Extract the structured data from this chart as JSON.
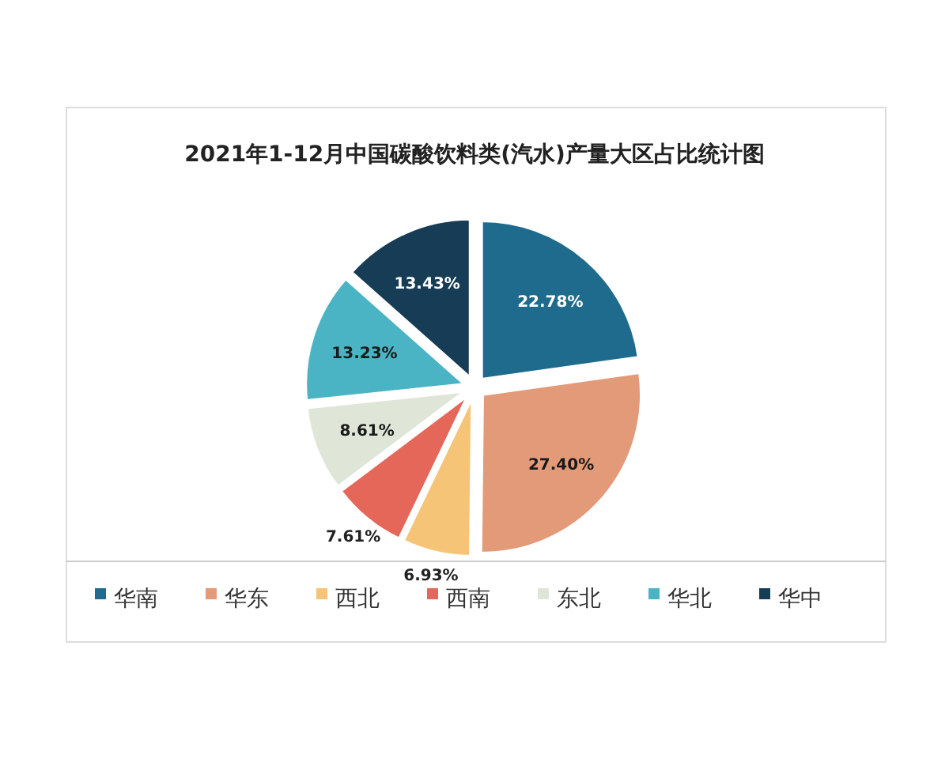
{
  "chart_data": {
    "type": "pie",
    "title": "2021年1-12月中国碳酸饮料类(汽水)产量大区占比统计图",
    "categories": [
      "华南",
      "华东",
      "西北",
      "西南",
      "东北",
      "华北",
      "华中"
    ],
    "values": [
      22.78,
      27.4,
      6.93,
      7.61,
      8.61,
      13.23,
      13.43
    ],
    "value_labels": [
      "22.78%",
      "27.40%",
      "6.93%",
      "7.61%",
      "8.61%",
      "13.23%",
      "13.43%"
    ],
    "colors": [
      "#1f6b8e",
      "#e39a78",
      "#f6c477",
      "#e5675a",
      "#dfe6d8",
      "#4bb4c4",
      "#173c55"
    ],
    "legend": "bottom"
  }
}
